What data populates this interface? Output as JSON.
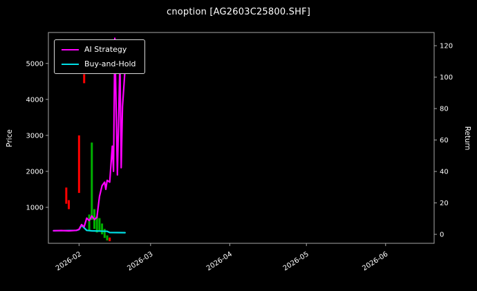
{
  "chart_data": {
    "type": "line",
    "title": "cnoption [AG2603C25800.SHF]",
    "xlabel": "",
    "ylabel_left": "Price",
    "ylabel_right": "Return",
    "grid": false,
    "background": "#000000",
    "text_color": "#ffffff",
    "spine_color": "#a8a8a8",
    "x_range": [
      "2026-01-20",
      "2026-06-20"
    ],
    "price_lim": [
      0,
      5860
    ],
    "return_lim": [
      -5.7,
      128.4
    ],
    "x_ticks": [
      "2026-02",
      "2026-03",
      "2026-04",
      "2026-05",
      "2026-06"
    ],
    "price_ticks": [
      1000,
      2000,
      3000,
      4000,
      5000
    ],
    "return_ticks": [
      0,
      20,
      40,
      60,
      80,
      100,
      120
    ],
    "legend": {
      "position": "upper-left",
      "entries": [
        {
          "label": "AI Strategy",
          "color": "#ff00ff"
        },
        {
          "label": "Buy-and-Hold",
          "color": "#00e0e6"
        }
      ]
    },
    "series": [
      {
        "name": "AI Strategy",
        "color": "#ff00ff",
        "axis": "price",
        "points": [
          [
            "2026-01-22",
            350
          ],
          [
            "2026-01-25",
            355
          ],
          [
            "2026-01-28",
            345
          ],
          [
            "2026-01-31",
            360
          ],
          [
            "2026-02-01",
            390
          ],
          [
            "2026-02-02",
            520
          ],
          [
            "2026-02-03",
            460
          ],
          [
            "2026-02-04",
            700
          ],
          [
            "2026-02-05",
            630
          ],
          [
            "2026-02-06",
            760
          ],
          [
            "2026-02-07",
            660
          ],
          [
            "2026-02-08",
            720
          ],
          [
            "2026-02-09",
            1300
          ],
          [
            "2026-02-10",
            1600
          ],
          [
            "2026-02-11",
            1700
          ],
          [
            "2026-02-11T12:00",
            1500
          ],
          [
            "2026-02-12",
            1750
          ],
          [
            "2026-02-13",
            1700
          ],
          [
            "2026-02-14",
            2700
          ],
          [
            "2026-02-14T12:00",
            2000
          ],
          [
            "2026-02-15",
            5700
          ],
          [
            "2026-02-16",
            1900
          ],
          [
            "2026-02-17",
            5100
          ],
          [
            "2026-02-17T12:00",
            2100
          ],
          [
            "2026-02-18",
            3800
          ],
          [
            "2026-02-19",
            4850
          ]
        ]
      },
      {
        "name": "Buy-and-Hold",
        "color": "#00e0e6",
        "axis": "price",
        "points": [
          [
            "2026-01-22",
            350
          ],
          [
            "2026-01-31",
            360
          ],
          [
            "2026-02-01",
            380
          ],
          [
            "2026-02-02",
            500
          ],
          [
            "2026-02-03",
            430
          ],
          [
            "2026-02-04",
            360
          ],
          [
            "2026-02-06",
            345
          ],
          [
            "2026-02-09",
            340
          ],
          [
            "2026-02-12",
            335
          ],
          [
            "2026-02-13",
            300
          ],
          [
            "2026-02-19",
            295
          ]
        ]
      }
    ],
    "candles": [
      {
        "date": "2026-01-27",
        "low": 1100,
        "high": 1550,
        "dir": "down"
      },
      {
        "date": "2026-01-28",
        "low": 950,
        "high": 1200,
        "dir": "down"
      },
      {
        "date": "2026-02-01",
        "low": 1400,
        "high": 3000,
        "dir": "down"
      },
      {
        "date": "2026-02-03",
        "low": 4450,
        "high": 4700,
        "dir": "down"
      },
      {
        "date": "2026-02-05",
        "low": 350,
        "high": 800,
        "dir": "up"
      },
      {
        "date": "2026-02-06",
        "low": 650,
        "high": 2800,
        "dir": "up"
      },
      {
        "date": "2026-02-07",
        "low": 400,
        "high": 950,
        "dir": "up"
      },
      {
        "date": "2026-02-08",
        "low": 300,
        "high": 750,
        "dir": "up"
      },
      {
        "date": "2026-02-09",
        "low": 350,
        "high": 700,
        "dir": "up"
      },
      {
        "date": "2026-02-10",
        "low": 250,
        "high": 550,
        "dir": "up"
      },
      {
        "date": "2026-02-11",
        "low": 150,
        "high": 400,
        "dir": "up"
      },
      {
        "date": "2026-02-12",
        "low": 80,
        "high": 220,
        "dir": "up"
      },
      {
        "date": "2026-02-13",
        "low": 60,
        "high": 160,
        "dir": "down"
      }
    ],
    "candle_colors": {
      "up": "#00b000",
      "down": "#ff0000"
    }
  }
}
